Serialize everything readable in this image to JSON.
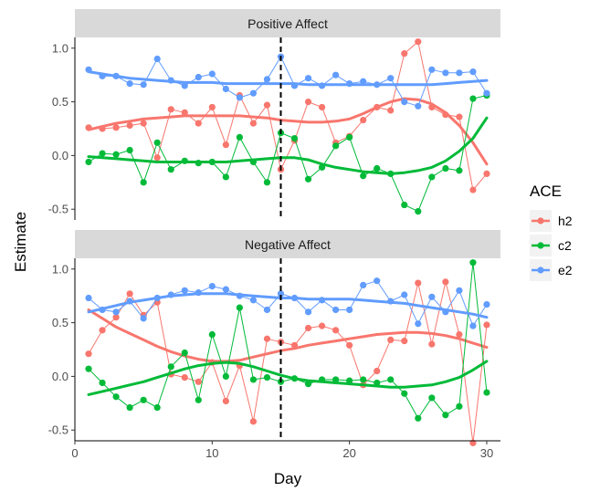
{
  "chart_data": {
    "type": "line",
    "xlabel": "Day",
    "ylabel": "Estimate",
    "xlim": [
      0,
      31
    ],
    "ylim": [
      -0.6,
      1.1
    ],
    "x_ticks": [
      0,
      10,
      20,
      30
    ],
    "y_ticks": [
      -0.5,
      0.0,
      0.5,
      1.0
    ],
    "y_tick_labels": [
      "-0.5",
      "0.0",
      "0.5",
      "1.0"
    ],
    "reference_line_x": 15,
    "legend": {
      "title": "ACE",
      "placement": "right",
      "entries": [
        {
          "label": "h2",
          "color": "#F8766D"
        },
        {
          "label": "c2",
          "color": "#00BA38"
        },
        {
          "label": "e2",
          "color": "#619CFF"
        }
      ]
    },
    "x": [
      1,
      2,
      3,
      4,
      5,
      6,
      7,
      8,
      9,
      10,
      11,
      12,
      13,
      14,
      15,
      16,
      17,
      18,
      19,
      20,
      21,
      22,
      23,
      24,
      25,
      26,
      27,
      28,
      29,
      30
    ],
    "panels": [
      {
        "title": "Positive Affect",
        "series": [
          {
            "name": "h2",
            "color": "#F8766D",
            "values": [
              0.26,
              0.25,
              0.26,
              0.28,
              0.3,
              -0.02,
              0.43,
              0.4,
              0.3,
              0.45,
              0.1,
              0.56,
              0.3,
              0.47,
              -0.13,
              0.14,
              0.5,
              0.45,
              0.12,
              0.18,
              0.33,
              0.45,
              0.42,
              0.95,
              1.06,
              0.45,
              0.38,
              0.36,
              -0.32,
              -0.17
            ],
            "smooth": [
              0.24,
              0.27,
              0.3,
              0.32,
              0.34,
              0.35,
              0.36,
              0.37,
              0.37,
              0.37,
              0.37,
              0.37,
              0.36,
              0.35,
              0.33,
              0.32,
              0.31,
              0.31,
              0.32,
              0.34,
              0.39,
              0.45,
              0.5,
              0.53,
              0.52,
              0.48,
              0.4,
              0.28,
              0.12,
              -0.08
            ]
          },
          {
            "name": "c2",
            "color": "#00BA38",
            "values": [
              -0.06,
              0.02,
              0.01,
              0.05,
              -0.25,
              0.12,
              -0.13,
              -0.05,
              -0.07,
              -0.06,
              -0.2,
              0.17,
              -0.06,
              -0.25,
              0.21,
              0.16,
              -0.22,
              -0.11,
              0.09,
              0.17,
              -0.19,
              -0.12,
              -0.17,
              -0.46,
              -0.52,
              -0.2,
              -0.12,
              -0.14,
              0.53,
              0.56
            ],
            "smooth": [
              -0.01,
              -0.02,
              -0.03,
              -0.04,
              -0.05,
              -0.06,
              -0.06,
              -0.06,
              -0.06,
              -0.06,
              -0.06,
              -0.05,
              -0.04,
              -0.03,
              -0.02,
              -0.02,
              -0.04,
              -0.08,
              -0.11,
              -0.13,
              -0.15,
              -0.16,
              -0.17,
              -0.16,
              -0.14,
              -0.11,
              -0.05,
              0.04,
              0.16,
              0.35
            ]
          },
          {
            "name": "e2",
            "color": "#619CFF",
            "values": [
              0.8,
              0.74,
              0.74,
              0.67,
              0.66,
              0.9,
              0.7,
              0.65,
              0.73,
              0.76,
              0.62,
              0.54,
              0.58,
              0.71,
              0.92,
              0.65,
              0.72,
              0.65,
              0.75,
              0.67,
              0.69,
              0.66,
              0.72,
              0.5,
              0.46,
              0.8,
              0.77,
              0.77,
              0.78,
              0.58
            ],
            "smooth": [
              0.78,
              0.76,
              0.74,
              0.72,
              0.71,
              0.7,
              0.69,
              0.68,
              0.68,
              0.68,
              0.67,
              0.67,
              0.67,
              0.67,
              0.67,
              0.67,
              0.66,
              0.66,
              0.66,
              0.66,
              0.66,
              0.66,
              0.66,
              0.66,
              0.66,
              0.66,
              0.67,
              0.68,
              0.69,
              0.7
            ]
          }
        ]
      },
      {
        "title": "Negative Affect",
        "series": [
          {
            "name": "h2",
            "color": "#F8766D",
            "values": [
              0.21,
              0.43,
              0.55,
              0.77,
              0.57,
              0.69,
              0.02,
              -0.01,
              -0.05,
              0.13,
              -0.23,
              0.1,
              -0.42,
              0.35,
              0.32,
              0.29,
              0.45,
              0.47,
              0.43,
              0.29,
              -0.08,
              0.05,
              0.34,
              0.33,
              0.87,
              0.3,
              0.88,
              0.39,
              -0.62,
              0.48
            ],
            "smooth": [
              0.62,
              0.54,
              0.46,
              0.4,
              0.34,
              0.28,
              0.23,
              0.19,
              0.16,
              0.14,
              0.14,
              0.15,
              0.18,
              0.21,
              0.24,
              0.26,
              0.29,
              0.31,
              0.33,
              0.35,
              0.37,
              0.39,
              0.4,
              0.41,
              0.41,
              0.4,
              0.38,
              0.35,
              0.31,
              0.27
            ]
          },
          {
            "name": "c2",
            "color": "#00BA38",
            "values": [
              0.07,
              -0.06,
              -0.19,
              -0.29,
              -0.22,
              -0.29,
              0.09,
              0.22,
              -0.22,
              0.39,
              0.0,
              0.64,
              -0.03,
              -0.01,
              -0.05,
              -0.02,
              -0.07,
              -0.03,
              -0.03,
              -0.04,
              -0.03,
              -0.06,
              -0.03,
              -0.16,
              -0.39,
              -0.2,
              -0.36,
              -0.28,
              1.06,
              -0.15
            ],
            "smooth": [
              -0.17,
              -0.14,
              -0.11,
              -0.08,
              -0.05,
              -0.01,
              0.03,
              0.07,
              0.1,
              0.12,
              0.13,
              0.12,
              0.09,
              0.05,
              0.01,
              -0.02,
              -0.04,
              -0.05,
              -0.06,
              -0.07,
              -0.08,
              -0.09,
              -0.1,
              -0.1,
              -0.09,
              -0.08,
              -0.05,
              -0.01,
              0.06,
              0.14
            ]
          },
          {
            "name": "e2",
            "color": "#619CFF",
            "values": [
              0.73,
              0.62,
              0.6,
              0.7,
              0.54,
              0.73,
              0.76,
              0.8,
              0.78,
              0.84,
              0.81,
              0.75,
              0.71,
              0.62,
              0.77,
              0.73,
              0.6,
              0.71,
              0.62,
              0.62,
              0.85,
              0.89,
              0.7,
              0.76,
              0.49,
              0.74,
              0.6,
              0.8,
              0.47,
              0.67
            ],
            "smooth": [
              0.6,
              0.63,
              0.66,
              0.69,
              0.71,
              0.73,
              0.75,
              0.76,
              0.77,
              0.77,
              0.77,
              0.76,
              0.75,
              0.74,
              0.73,
              0.73,
              0.72,
              0.72,
              0.72,
              0.72,
              0.71,
              0.7,
              0.69,
              0.68,
              0.66,
              0.64,
              0.62,
              0.6,
              0.58,
              0.55
            ]
          }
        ]
      }
    ]
  }
}
